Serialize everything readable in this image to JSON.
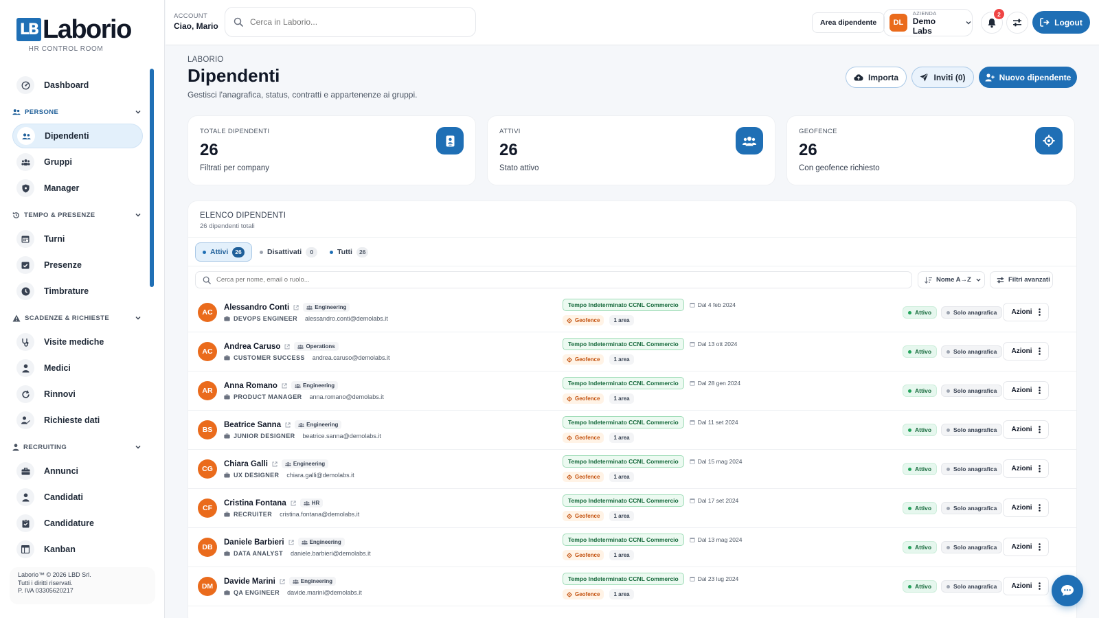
{
  "brand": {
    "mark": "LB",
    "name": "Laborio",
    "subtitle": "HR CONTROL ROOM"
  },
  "sidebar": {
    "dashboard": {
      "label": "Dashboard",
      "icon": "gauge-icon"
    },
    "sections": [
      {
        "label": "PERSONE",
        "items": [
          {
            "label": "Dipendenti",
            "icon": "users-icon",
            "active": true
          },
          {
            "label": "Gruppi",
            "icon": "group-icon"
          },
          {
            "label": "Manager",
            "icon": "shield-icon"
          }
        ]
      },
      {
        "label": "TEMPO & PRESENZE",
        "items": [
          {
            "label": "Turni",
            "icon": "calendar-icon"
          },
          {
            "label": "Presenze",
            "icon": "calendar-check-icon"
          },
          {
            "label": "Timbrature",
            "icon": "clock-icon"
          }
        ]
      },
      {
        "label": "SCADENZE & RICHIESTE",
        "items": [
          {
            "label": "Visite mediche",
            "icon": "stethoscope-icon"
          },
          {
            "label": "Medici",
            "icon": "doctor-icon"
          },
          {
            "label": "Rinnovi",
            "icon": "refresh-icon"
          },
          {
            "label": "Richieste dati",
            "icon": "user-edit-icon"
          }
        ]
      },
      {
        "label": "RECRUITING",
        "items": [
          {
            "label": "Annunci",
            "icon": "briefcase-icon"
          },
          {
            "label": "Candidati",
            "icon": "user-icon"
          },
          {
            "label": "Candidature",
            "icon": "clipboard-icon"
          },
          {
            "label": "Kanban",
            "icon": "kanban-icon"
          }
        ]
      }
    ],
    "copyright": [
      "Laborio™ © 2026 LBD Srl.",
      "Tutti i diritti riservati.",
      "P. IVA 03305620217"
    ]
  },
  "topbar": {
    "account_label": "ACCOUNT",
    "account_name": "Ciao, Mario",
    "search_placeholder": "Cerca in Laborio...",
    "area_button": "Area dipendente",
    "company_label": "AZIENDA",
    "company_name": "Demo Labs",
    "company_initials": "DL",
    "notifications_count": "2",
    "logout_label": "Logout"
  },
  "page": {
    "breadcrumb": "LABORIO",
    "title": "Dipendenti",
    "subtitle": "Gestisci l'anagrafica, status, contratti e appartenenze ai gruppi.",
    "import_label": "Importa",
    "invites_label": "Inviti (0)",
    "new_label": "Nuovo dipendente"
  },
  "stats": [
    {
      "label": "TOTALE DIPENDENTI",
      "value": "26",
      "sub": "Filtrati per company",
      "icon": "id-badge-icon"
    },
    {
      "label": "ATTIVI",
      "value": "26",
      "sub": "Stato attivo",
      "icon": "users-icon"
    },
    {
      "label": "GEOFENCE",
      "value": "26",
      "sub": "Con geofence richiesto",
      "icon": "crosshair-icon"
    }
  ],
  "list": {
    "title": "ELENCO DIPENDENTI",
    "subtitle": "26 dipendenti totali",
    "tabs": [
      {
        "label": "Attivi",
        "count": "26",
        "active": true
      },
      {
        "label": "Disattivati",
        "count": "0"
      },
      {
        "label": "Tutti",
        "count": "26"
      }
    ],
    "search_placeholder": "Cerca per nome, email o ruolo...",
    "sort_label": "Nome A→Z",
    "filters_label": "Filtri avanzati",
    "contract_label": "Tempo Indeterminato CCNL Commercio",
    "geofence_label": "Geofence",
    "area_label": "1 area",
    "status_label": "Attivo",
    "anag_label": "Solo anagrafica",
    "actions_label": "Azioni"
  },
  "employees": [
    {
      "initials": "AC",
      "name": "Alessandro Conti",
      "group": "Engineering",
      "role": "DEVOPS ENGINEER",
      "email": "alessandro.conti@demolabs.it",
      "since": "Dal 4 feb 2024"
    },
    {
      "initials": "AC",
      "name": "Andrea Caruso",
      "group": "Operations",
      "role": "CUSTOMER SUCCESS",
      "email": "andrea.caruso@demolabs.it",
      "since": "Dal 13 ott 2024"
    },
    {
      "initials": "AR",
      "name": "Anna Romano",
      "group": "Engineering",
      "role": "PRODUCT MANAGER",
      "email": "anna.romano@demolabs.it",
      "since": "Dal 28 gen 2024"
    },
    {
      "initials": "BS",
      "name": "Beatrice Sanna",
      "group": "Engineering",
      "role": "JUNIOR DESIGNER",
      "email": "beatrice.sanna@demolabs.it",
      "since": "Dal 11 set 2024"
    },
    {
      "initials": "CG",
      "name": "Chiara Galli",
      "group": "Engineering",
      "role": "UX DESIGNER",
      "email": "chiara.galli@demolabs.it",
      "since": "Dal 15 mag 2024"
    },
    {
      "initials": "CF",
      "name": "Cristina Fontana",
      "group": "HR",
      "role": "RECRUITER",
      "email": "cristina.fontana@demolabs.it",
      "since": "Dal 17 set 2024"
    },
    {
      "initials": "DB",
      "name": "Daniele Barbieri",
      "group": "Engineering",
      "role": "DATA ANALYST",
      "email": "daniele.barbieri@demolabs.it",
      "since": "Dal 13 mag 2024"
    },
    {
      "initials": "DM",
      "name": "Davide Marini",
      "group": "Engineering",
      "role": "QA ENGINEER",
      "email": "davide.marini@demolabs.it",
      "since": "Dal 23 lug 2024"
    }
  ],
  "colors": {
    "accent": "#1f6fb5",
    "avatar": "#ea6b1c",
    "success": "#22a35a"
  }
}
